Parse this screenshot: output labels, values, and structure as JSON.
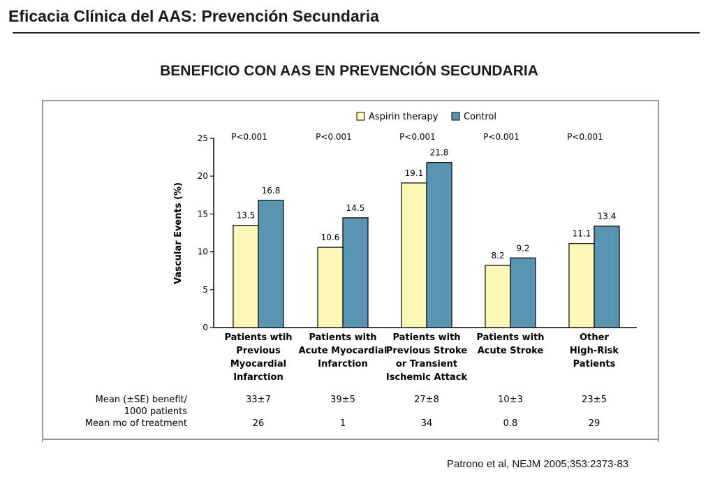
{
  "header": {
    "title": "Eficacia Clínica del AAS: Prevención Secundaria",
    "subtitle": "BENEFICIO CON AAS EN PREVENCIÓN SECUNDARIA"
  },
  "citation": "Patrono et al, NEJM 2005;353:2373-83",
  "chart_data": {
    "type": "bar",
    "ylabel": "Vascular Events (%)",
    "ylim": [
      0,
      25
    ],
    "yticks": [
      0,
      5,
      10,
      15,
      20,
      25
    ],
    "legend_position": "top",
    "categories": [
      [
        "Patients wtih",
        "Previous",
        "Myocardial",
        "Infarction"
      ],
      [
        "Patients with",
        "Acute Myocardial",
        "Infarction"
      ],
      [
        "Patients with",
        "Previous Stroke",
        "or Transient",
        "Ischemic Attack"
      ],
      [
        "Patients with",
        "Acute Stroke"
      ],
      [
        "Other",
        "High-Risk",
        "Patients"
      ]
    ],
    "p_values": [
      "P<0.001",
      "P<0.001",
      "P<0.001",
      "P<0.001",
      "P<0.001"
    ],
    "series": [
      {
        "name": "Aspirin therapy",
        "color": "#fdf8b7",
        "values": [
          13.5,
          10.6,
          19.1,
          8.2,
          11.1
        ],
        "labels": [
          "13.5",
          "10.6",
          "19.1",
          "8.2",
          "11.1"
        ]
      },
      {
        "name": "Control",
        "color": "#5b93b2",
        "values": [
          16.8,
          14.5,
          21.8,
          9.2,
          13.4
        ],
        "labels": [
          "16.8",
          "14.5",
          "21.8",
          "9.2",
          "13.4"
        ]
      }
    ],
    "table_rows": [
      {
        "label": [
          "Mean (±SE) benefit/",
          "1000 patients"
        ],
        "values": [
          "33±7",
          "39±5",
          "27±8",
          "10±3",
          "23±5"
        ]
      },
      {
        "label": [
          "Mean mo of treatment"
        ],
        "values": [
          "26",
          "1",
          "34",
          "0.8",
          "29"
        ]
      }
    ]
  }
}
